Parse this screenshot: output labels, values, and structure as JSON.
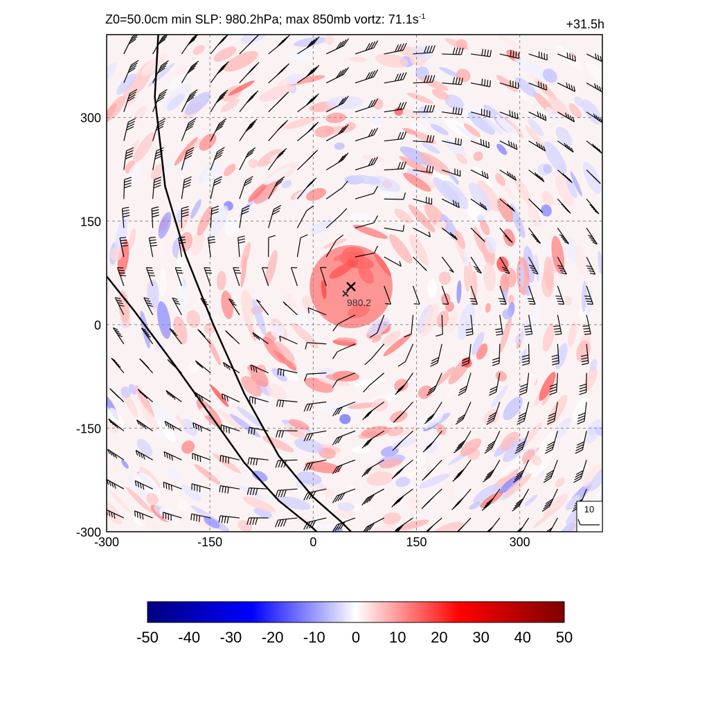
{
  "header": {
    "title_main": "Z0=50.0cm  min SLP: 980.2hPa; max 850mb vortz:  71.1s",
    "title_sup": "-1",
    "forecast_hour": "+31.5h"
  },
  "chart_data": {
    "type": "heatmap",
    "title": "Z0=50.0cm  min SLP: 980.2hPa; max 850mb vortz:  71.1s-1",
    "xlim": [
      -300,
      420
    ],
    "ylim": [
      -300,
      420
    ],
    "x_ticks": [
      "-300",
      "-150",
      "0",
      "150",
      "300"
    ],
    "y_ticks": [
      "-300",
      "-150",
      "0",
      "150",
      "300"
    ],
    "grid": "dashed",
    "center": {
      "x": 55,
      "y": 55,
      "label": "980.2"
    },
    "colorbar": {
      "min": -50,
      "max": 50,
      "tick_labels": [
        "-50",
        "-40",
        "-30",
        "-20",
        "-10",
        "0",
        "10",
        "20",
        "30",
        "40",
        "50"
      ],
      "colors": [
        "#00007f",
        "#0000ff",
        "#ffffff",
        "#ff0000",
        "#7f0000"
      ]
    },
    "wind_reference_label": "10",
    "coast_lines": [
      [
        [
          -225,
          420
        ],
        [
          -230,
          330
        ],
        [
          -215,
          200
        ],
        [
          -185,
          100
        ],
        [
          -145,
          0
        ],
        [
          -100,
          -100
        ],
        [
          -50,
          -190
        ],
        [
          0,
          -250
        ],
        [
          40,
          -285
        ],
        [
          55,
          -300
        ]
      ],
      [
        [
          -300,
          70
        ],
        [
          -260,
          20
        ],
        [
          -200,
          -60
        ],
        [
          -150,
          -130
        ],
        [
          -100,
          -200
        ],
        [
          -50,
          -255
        ],
        [
          0,
          -295
        ],
        [
          5,
          -300
        ]
      ]
    ]
  }
}
